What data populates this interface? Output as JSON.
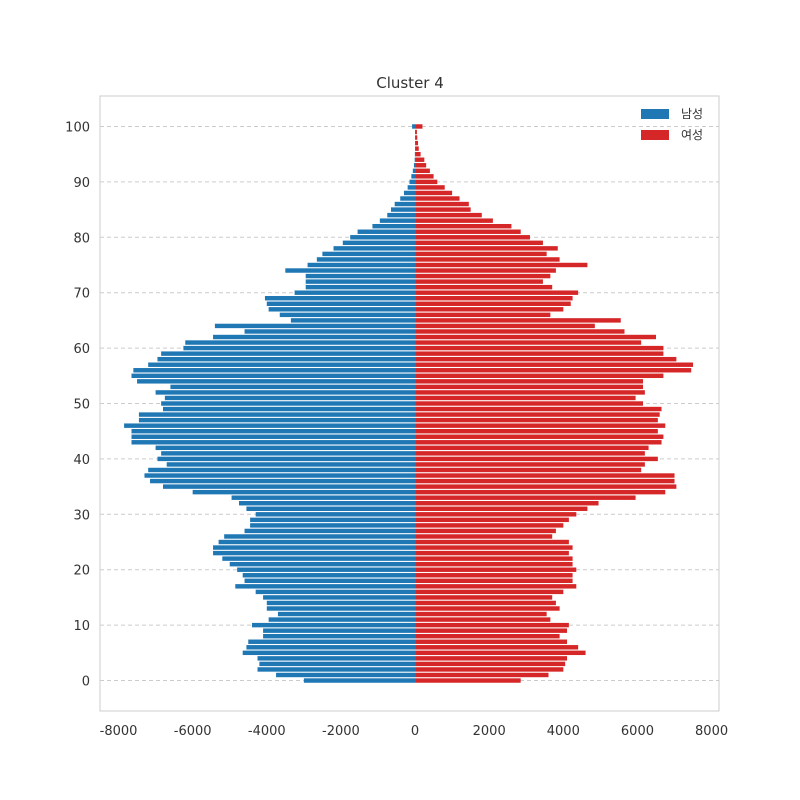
{
  "chart_data": {
    "type": "bar",
    "orientation": "horizontal",
    "title": "Cluster 4",
    "xlabel": "",
    "ylabel": "",
    "xlim": [
      -8500,
      8200
    ],
    "ylim": [
      -5.5,
      105.5
    ],
    "xticks": [
      -8000,
      -6000,
      -4000,
      -2000,
      0,
      2000,
      4000,
      6000,
      8000
    ],
    "yticks": [
      0,
      10,
      20,
      30,
      40,
      50,
      60,
      70,
      80,
      90,
      100
    ],
    "grid": "horizontal-dashed",
    "legend_position": "top-right",
    "ages": [
      0,
      1,
      2,
      3,
      4,
      5,
      6,
      7,
      8,
      9,
      10,
      11,
      12,
      13,
      14,
      15,
      16,
      17,
      18,
      19,
      20,
      21,
      22,
      23,
      24,
      25,
      26,
      27,
      28,
      29,
      30,
      31,
      32,
      33,
      34,
      35,
      36,
      37,
      38,
      39,
      40,
      41,
      42,
      43,
      44,
      45,
      46,
      47,
      48,
      49,
      50,
      51,
      52,
      53,
      54,
      55,
      56,
      57,
      58,
      59,
      60,
      61,
      62,
      63,
      64,
      65,
      66,
      67,
      68,
      69,
      70,
      71,
      72,
      73,
      74,
      75,
      76,
      77,
      78,
      79,
      80,
      81,
      82,
      83,
      84,
      85,
      86,
      87,
      88,
      89,
      90,
      91,
      92,
      93,
      94,
      95,
      96,
      97,
      98,
      99,
      100
    ],
    "series": [
      {
        "name": "남성",
        "color": "#1f77b4",
        "values": [
          -3000,
          -3750,
          -4250,
          -4200,
          -4250,
          -4650,
          -4550,
          -4500,
          -4100,
          -4100,
          -4400,
          -3950,
          -3700,
          -4000,
          -4000,
          -4100,
          -4300,
          -4850,
          -4600,
          -4650,
          -4800,
          -5000,
          -5200,
          -5450,
          -5450,
          -5300,
          -5150,
          -4600,
          -4450,
          -4450,
          -4300,
          -4550,
          -4750,
          -4950,
          -6000,
          -6800,
          -7150,
          -7300,
          -7200,
          -6700,
          -6950,
          -6850,
          -7000,
          -7650,
          -7650,
          -7650,
          -7850,
          -7450,
          -7450,
          -6800,
          -6850,
          -6750,
          -7000,
          -6600,
          -7500,
          -7650,
          -7600,
          -7200,
          -6950,
          -6850,
          -6250,
          -6200,
          -5450,
          -4600,
          -5400,
          -3350,
          -3650,
          -3950,
          -4000,
          -4050,
          -3250,
          -2950,
          -2950,
          -2950,
          -3500,
          -2900,
          -2650,
          -2500,
          -2200,
          -1950,
          -1750,
          -1550,
          -1150,
          -950,
          -750,
          -650,
          -550,
          -400,
          -300,
          -200,
          -150,
          -100,
          -60,
          -30,
          -10,
          -5,
          0,
          0,
          0,
          0,
          -80
        ]
      },
      {
        "name": "여성",
        "color": "#d62728",
        "values": [
          2850,
          3600,
          4000,
          4050,
          4100,
          4600,
          4400,
          4100,
          3900,
          4100,
          4150,
          3650,
          3550,
          3900,
          3800,
          3700,
          4000,
          4350,
          4250,
          4250,
          4350,
          4250,
          4250,
          4150,
          4250,
          4150,
          3700,
          3800,
          4000,
          4150,
          4350,
          4650,
          4950,
          5950,
          6750,
          7050,
          7000,
          7000,
          6100,
          6200,
          6550,
          6200,
          6300,
          6650,
          6700,
          6550,
          6750,
          6550,
          6600,
          6650,
          6150,
          5950,
          6200,
          6150,
          6150,
          6700,
          7450,
          7500,
          7050,
          6700,
          6700,
          6100,
          6500,
          5650,
          4850,
          5550,
          3650,
          4000,
          4200,
          4250,
          4400,
          3700,
          3450,
          3650,
          3800,
          4650,
          3900,
          3550,
          3850,
          3450,
          3100,
          2850,
          2600,
          2100,
          1800,
          1500,
          1450,
          1200,
          1000,
          800,
          600,
          500,
          400,
          300,
          250,
          150,
          100,
          80,
          60,
          50,
          200
        ]
      }
    ]
  }
}
